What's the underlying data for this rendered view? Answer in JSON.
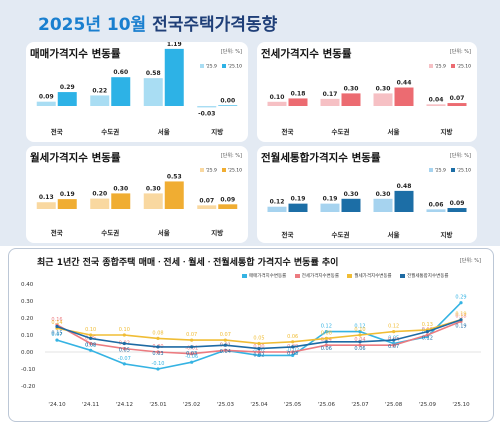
{
  "title": {
    "accent": "2025년 10월",
    "main": "전국주택가격동향"
  },
  "unit": "[단위: %]",
  "legend_periods": [
    "'25.9",
    "'25.10"
  ],
  "colors": {
    "sale": [
      "#a9ddf3",
      "#2db2e6"
    ],
    "jeonse": [
      "#f6c0c4",
      "#ec6b71"
    ],
    "monthly": [
      "#f9d8a0",
      "#f0ad32"
    ],
    "combined": [
      "#a6d3ef",
      "#1c6ea6"
    ],
    "trend": [
      "#35b3e3",
      "#ec7b80",
      "#f0bd35",
      "#1e6aa3"
    ]
  },
  "chart_data": [
    {
      "type": "bar",
      "title": "매매가격지수 변동률",
      "unit": "[단위: %]",
      "categories": [
        "전국",
        "수도권",
        "서울",
        "지방"
      ],
      "series": [
        {
          "name": "'25.9",
          "values": [
            0.09,
            0.22,
            0.58,
            -0.03
          ]
        },
        {
          "name": "'25.10",
          "values": [
            0.29,
            0.6,
            1.19,
            0.0
          ]
        }
      ]
    },
    {
      "type": "bar",
      "title": "전세가격지수 변동률",
      "unit": "[단위: %]",
      "categories": [
        "전국",
        "수도권",
        "서울",
        "지방"
      ],
      "series": [
        {
          "name": "'25.9",
          "values": [
            0.1,
            0.17,
            0.3,
            0.04
          ]
        },
        {
          "name": "'25.10",
          "values": [
            0.18,
            0.3,
            0.44,
            0.07
          ]
        }
      ]
    },
    {
      "type": "bar",
      "title": "월세가격지수 변동률",
      "unit": "[단위: %]",
      "categories": [
        "전국",
        "수도권",
        "서울",
        "지방"
      ],
      "series": [
        {
          "name": "'25.9",
          "values": [
            0.13,
            0.2,
            0.3,
            0.07
          ]
        },
        {
          "name": "'25.10",
          "values": [
            0.19,
            0.3,
            0.53,
            0.09
          ]
        }
      ]
    },
    {
      "type": "bar",
      "title": "전월세통합가격지수 변동률",
      "unit": "[단위: %]",
      "categories": [
        "전국",
        "수도권",
        "서울",
        "지방"
      ],
      "series": [
        {
          "name": "'25.9",
          "values": [
            0.12,
            0.19,
            0.3,
            0.06
          ]
        },
        {
          "name": "'25.10",
          "values": [
            0.19,
            0.3,
            0.48,
            0.09
          ]
        }
      ]
    },
    {
      "type": "line",
      "title": "최근 1년간 전국 종합주택 매매ㆍ전세ㆍ월세ㆍ전월세통합 가격지수 변동률 추이",
      "unit": "[단위: %]",
      "x": [
        "'24.10",
        "'24.11",
        "'24.12",
        "'25.01",
        "'25.02",
        "'25.03",
        "'25.04",
        "'25.05",
        "'25.06",
        "'25.07",
        "'25.08",
        "'25.09",
        "'25.10"
      ],
      "ylim": [
        -0.2,
        0.4
      ],
      "yticks": [
        "0.40",
        "0.30",
        "0.20",
        "0.10",
        "0.00",
        "-0.10",
        "-0.20"
      ],
      "series": [
        {
          "name": "매매가격지수변동률",
          "values": [
            0.07,
            0.01,
            -0.07,
            -0.1,
            -0.06,
            0.01,
            -0.02,
            -0.02,
            0.12,
            0.12,
            0.05,
            0.09,
            0.29
          ]
        },
        {
          "name": "전세가격지수변동률",
          "values": [
            0.16,
            0.05,
            0.02,
            0.0,
            -0.01,
            0.01,
            0.0,
            0.0,
            0.04,
            0.04,
            0.04,
            0.1,
            0.18
          ]
        },
        {
          "name": "월세가격지수변동률",
          "values": [
            0.14,
            0.1,
            0.1,
            0.08,
            0.07,
            0.07,
            0.05,
            0.06,
            0.08,
            0.1,
            0.12,
            0.13,
            0.19
          ]
        },
        {
          "name": "전월세통합지수변동률",
          "values": [
            0.15,
            0.08,
            0.05,
            0.03,
            0.03,
            0.04,
            0.02,
            0.03,
            0.06,
            0.06,
            0.07,
            0.12,
            0.19
          ]
        }
      ]
    }
  ]
}
